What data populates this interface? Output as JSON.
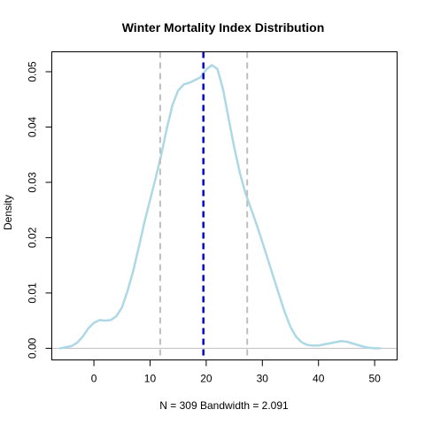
{
  "chart_data": {
    "type": "area",
    "title": "Winter Mortality Index Distribution",
    "xlabel": "N = 309   Bandwidth = 2.091",
    "ylabel": "Density",
    "xlim": [
      -7.5,
      54
    ],
    "ylim": [
      -0.0021,
      0.0536
    ],
    "x_ticks": [
      0,
      10,
      20,
      30,
      40,
      50
    ],
    "x_tick_labels": [
      "0",
      "10",
      "20",
      "30",
      "40",
      "50"
    ],
    "y_ticks": [
      0,
      0.01,
      0.02,
      0.03,
      0.04,
      0.05
    ],
    "y_tick_labels": [
      "0.00",
      "0.01",
      "0.02",
      "0.03",
      "0.04",
      "0.05"
    ],
    "grid": false,
    "legend": "none",
    "series": [
      {
        "x": [
          -6,
          -4,
          -3,
          -2,
          -1,
          0,
          1,
          2,
          3,
          4,
          5,
          6,
          7,
          8,
          9,
          10,
          11,
          12,
          13,
          14,
          15,
          16,
          17,
          18,
          19,
          20,
          21,
          22,
          23,
          24,
          25,
          26,
          27,
          28,
          29,
          30,
          31,
          32,
          33,
          34,
          35,
          36,
          37,
          38,
          39,
          40,
          41,
          42,
          43,
          44,
          45,
          46,
          47,
          48,
          49,
          50,
          51
        ],
        "y": [
          0,
          0.0004,
          0.001,
          0.0021,
          0.0036,
          0.0046,
          0.0051,
          0.005,
          0.0051,
          0.0058,
          0.0074,
          0.0104,
          0.014,
          0.0183,
          0.0228,
          0.0268,
          0.0308,
          0.035,
          0.0398,
          0.044,
          0.0466,
          0.0477,
          0.048,
          0.0485,
          0.049,
          0.0504,
          0.0512,
          0.0505,
          0.0468,
          0.0415,
          0.0363,
          0.0317,
          0.028,
          0.0252,
          0.0223,
          0.0192,
          0.016,
          0.0128,
          0.0096,
          0.0065,
          0.0039,
          0.0021,
          0.0011,
          0.0006,
          0.0005,
          0.0005,
          0.0007,
          0.0009,
          0.0011,
          0.0013,
          0.0012,
          0.0009,
          0.0006,
          0.0003,
          0.0001,
          0,
          0
        ],
        "color": "#add8e6"
      }
    ],
    "baseline": {
      "y": 0,
      "color": "#bebebe"
    },
    "reference_lines": [
      {
        "x": 11.8,
        "color": "#bebebe",
        "style": "dashed"
      },
      {
        "x": 19.5,
        "color": "#0000cd",
        "style": "dashed"
      },
      {
        "x": 27.3,
        "color": "#bebebe",
        "style": "dashed"
      }
    ]
  }
}
